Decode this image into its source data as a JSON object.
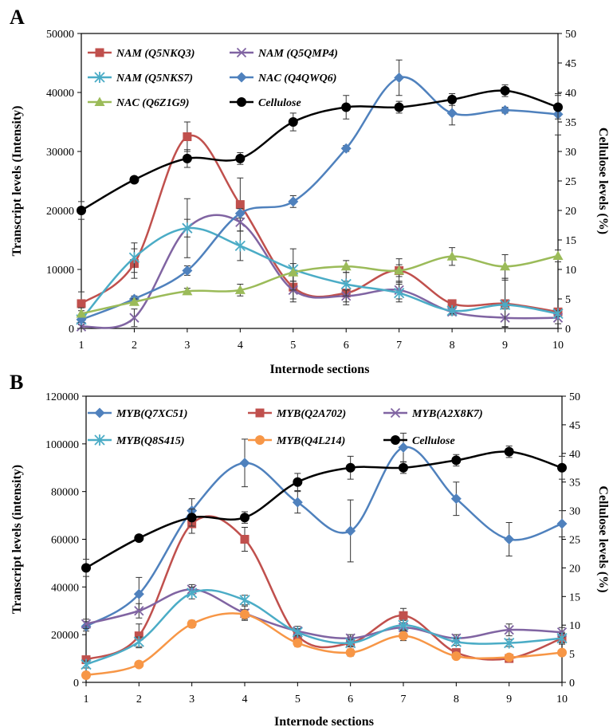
{
  "chart_data": [
    {
      "type": "line",
      "panel": "A",
      "xlabel": "Internode sections",
      "ylabel": "Transcript levels  (Intensity)",
      "y2label": "Cellulose levels (%)",
      "x": [
        1,
        2,
        3,
        4,
        5,
        6,
        7,
        8,
        9,
        10
      ],
      "ylim": [
        0,
        50000
      ],
      "yticks": [
        0,
        10000,
        20000,
        30000,
        40000,
        50000
      ],
      "y2lim": [
        0,
        50
      ],
      "y2ticks": [
        0,
        5,
        10,
        15,
        20,
        25,
        30,
        35,
        40,
        45,
        50
      ],
      "legend_placement": "top-left",
      "series": [
        {
          "name": "NAM (Q5NKQ3)",
          "color": "#c0504d",
          "marker": "square",
          "axis": "left",
          "values": [
            4200,
            11000,
            32500,
            21000,
            7000,
            6000,
            9800,
            4200,
            4200,
            2800
          ],
          "errors": [
            2000,
            2500,
            2500,
            4500,
            2500,
            2000,
            2000,
            500,
            4000,
            500
          ]
        },
        {
          "name": "NAM (Q5QMP4)",
          "color": "#8064a2",
          "marker": "x",
          "axis": "left",
          "values": [
            300,
            1800,
            17000,
            18000,
            6500,
            5500,
            6500,
            2800,
            1800,
            1800
          ],
          "errors": [
            300,
            1500,
            1500,
            1500,
            1500,
            1000,
            1500,
            500,
            1500,
            1000
          ]
        },
        {
          "name": "NAM (Q5NKS7)",
          "color": "#4bacc6",
          "marker": "star",
          "axis": "left",
          "values": [
            1500,
            12000,
            17000,
            14000,
            10000,
            7500,
            6000,
            3000,
            4000,
            2500
          ],
          "errors": [
            2000,
            2500,
            5000,
            2500,
            3500,
            2000,
            1500,
            500,
            4500,
            500
          ]
        },
        {
          "name": "NAC (Q4QWQ6)",
          "color": "#4f81bd",
          "marker": "diamond",
          "axis": "left",
          "values": [
            1500,
            5000,
            9800,
            19500,
            21500,
            30500,
            42500,
            36500,
            37000,
            36300
          ],
          "errors": [
            500,
            500,
            800,
            800,
            1000,
            500,
            3000,
            2000,
            500,
            3500
          ]
        },
        {
          "name": "NAC (Q6Z1G9)",
          "color": "#9bbb59",
          "marker": "triangle",
          "axis": "left",
          "values": [
            2500,
            4500,
            6300,
            6500,
            9500,
            10500,
            9800,
            12200,
            10500,
            12300
          ],
          "errors": [
            500,
            500,
            500,
            1000,
            1500,
            1000,
            1000,
            1500,
            2000,
            1000
          ]
        },
        {
          "name": "Cellulose",
          "color": "#000000",
          "marker": "circle",
          "axis": "right",
          "values": [
            20,
            25.2,
            28.8,
            28.8,
            35,
            37.5,
            37.5,
            38.8,
            40.3,
            37.5
          ],
          "errors": [
            1.5,
            0.5,
            1.5,
            1,
            1.5,
            2,
            1,
            1,
            1,
            2
          ]
        }
      ]
    },
    {
      "type": "line",
      "panel": "B",
      "xlabel": "Internode sections",
      "ylabel": "Transcript levels (intensity)",
      "y2label": "Cellulose levels (%)",
      "x": [
        1,
        2,
        3,
        4,
        5,
        6,
        7,
        8,
        9,
        10
      ],
      "ylim": [
        0,
        120000
      ],
      "yticks": [
        0,
        20000,
        40000,
        60000,
        80000,
        100000,
        120000
      ],
      "y2lim": [
        0,
        50
      ],
      "y2ticks": [
        0,
        5,
        10,
        15,
        20,
        25,
        30,
        35,
        40,
        45,
        50
      ],
      "legend_placement": "top-left",
      "series": [
        {
          "name": "MYB(Q7XC51)",
          "color": "#4f81bd",
          "marker": "diamond",
          "axis": "left",
          "values": [
            23500,
            37000,
            72000,
            92000,
            75500,
            63500,
            98500,
            77000,
            60000,
            66500
          ],
          "errors": [
            2000,
            7000,
            5000,
            10000,
            4500,
            13000,
            6000,
            7000,
            7000,
            5500
          ]
        },
        {
          "name": "MYB(Q2A702)",
          "color": "#c0504d",
          "marker": "square",
          "axis": "left",
          "values": [
            9500,
            19500,
            66500,
            60000,
            19500,
            16500,
            28000,
            12500,
            10000,
            18500
          ],
          "errors": [
            1500,
            5000,
            4000,
            5000,
            3000,
            2500,
            3000,
            1500,
            1500,
            2500
          ]
        },
        {
          "name": "MYB(A2X8K7)",
          "color": "#8064a2",
          "marker": "x",
          "axis": "left",
          "values": [
            24500,
            30000,
            39000,
            29000,
            21500,
            18500,
            23000,
            18500,
            22000,
            21000
          ],
          "errors": [
            2000,
            3000,
            2000,
            3000,
            2000,
            1500,
            2000,
            1500,
            2500,
            2000
          ]
        },
        {
          "name": "MYB(Q8S415)",
          "color": "#4bacc6",
          "marker": "star",
          "axis": "left",
          "values": [
            7500,
            17000,
            37500,
            34500,
            21000,
            16500,
            24000,
            17000,
            16500,
            18500
          ],
          "errors": [
            1500,
            2000,
            2500,
            2000,
            1500,
            1500,
            2000,
            1500,
            1500,
            2000
          ]
        },
        {
          "name": "MYB(Q4L214)",
          "color": "#f79646",
          "marker": "circle",
          "axis": "left",
          "values": [
            3000,
            7500,
            24500,
            28500,
            16500,
            12500,
            19500,
            11000,
            10500,
            12500
          ],
          "errors": [
            1000,
            1000,
            1500,
            2000,
            1500,
            1500,
            2000,
            1000,
            1000,
            1000
          ]
        },
        {
          "name": "Cellulose",
          "color": "#000000",
          "marker": "circle",
          "axis": "right",
          "values": [
            20,
            25.2,
            28.8,
            28.8,
            35,
            37.5,
            37.5,
            38.8,
            40.3,
            37.5
          ],
          "errors": [
            1.5,
            0.5,
            1.5,
            1,
            1.5,
            2,
            1,
            1,
            1,
            2
          ]
        }
      ]
    }
  ]
}
